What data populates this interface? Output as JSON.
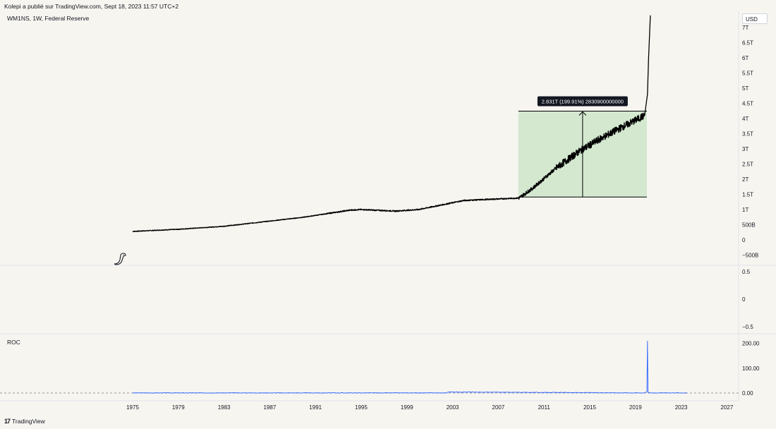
{
  "header": {
    "published_by": "Kolepi a publié sur TradingView.com, Sept 18, 2023 11:57 UTC+2",
    "symbol": "WM1NS, 1W, Federal Reserve",
    "currency_button": "USD"
  },
  "footer": {
    "logo": "17",
    "brand": "TradingView"
  },
  "colors": {
    "background": "#f7f5f0",
    "price_line": "#000000",
    "measure_fill": "#d4e8d0",
    "roc_line": "#2962ff",
    "separator": "#e0e3eb"
  },
  "icons": {
    "dino": "dinosaur-icon"
  },
  "chart_data": [
    {
      "type": "line",
      "series": [
        {
          "x": [
            1975,
            1979,
            1983,
            1987,
            1990,
            1994,
            1995,
            1998,
            2000,
            2002,
            2004,
            2007,
            2008.8,
            2010,
            2012,
            2014,
            2016,
            2018,
            2019.8,
            2020.05,
            2020.15,
            2020.3
          ],
          "y": [
            0.28,
            0.35,
            0.45,
            0.62,
            0.75,
            0.98,
            1.0,
            0.95,
            1.0,
            1.15,
            1.3,
            1.35,
            1.38,
            1.7,
            2.35,
            2.9,
            3.35,
            3.75,
            4.1,
            4.8,
            6.0,
            7.4
          ]
        }
      ],
      "y_ticks": [
        "7T",
        "6.5T",
        "6T",
        "5.5T",
        "5T",
        "4.5T",
        "4T",
        "3.5T",
        "3T",
        "2.5T",
        "2T",
        "1.5T",
        "1T",
        "500B",
        "0",
        "−500B"
      ],
      "ylim": [
        -0.5,
        7.5
      ],
      "measure": {
        "label": "2.831T (199.91%) 2830900000000",
        "x_range": [
          2008.75,
          2020.0
        ],
        "y_range": [
          1.413,
          4.244
        ]
      }
    },
    {
      "type": "line",
      "y_ticks": [
        "0.5",
        "0",
        "−0.5"
      ],
      "ylim": [
        -0.6,
        0.6
      ]
    },
    {
      "type": "line",
      "title": "ROC",
      "series": [
        {
          "name": "ROC",
          "x": [
            1975,
            2002.5,
            2002.6,
            2019.7,
            2020.0,
            2020.05,
            2020.1,
            2020.2,
            2023.5
          ],
          "y": [
            0.5,
            0.5,
            4.0,
            0.5,
            4.0,
            210.0,
            3.0,
            0.5,
            0.5
          ]
        }
      ],
      "y_ticks": [
        "200.00",
        "100.00",
        "0.00"
      ],
      "ylim": [
        -10,
        220
      ]
    }
  ],
  "x_axis": {
    "ticks": [
      "1975",
      "1979",
      "1983",
      "1987",
      "1991",
      "1995",
      "1999",
      "2003",
      "2007",
      "2011",
      "2015",
      "2019",
      "2023",
      "2027"
    ]
  }
}
